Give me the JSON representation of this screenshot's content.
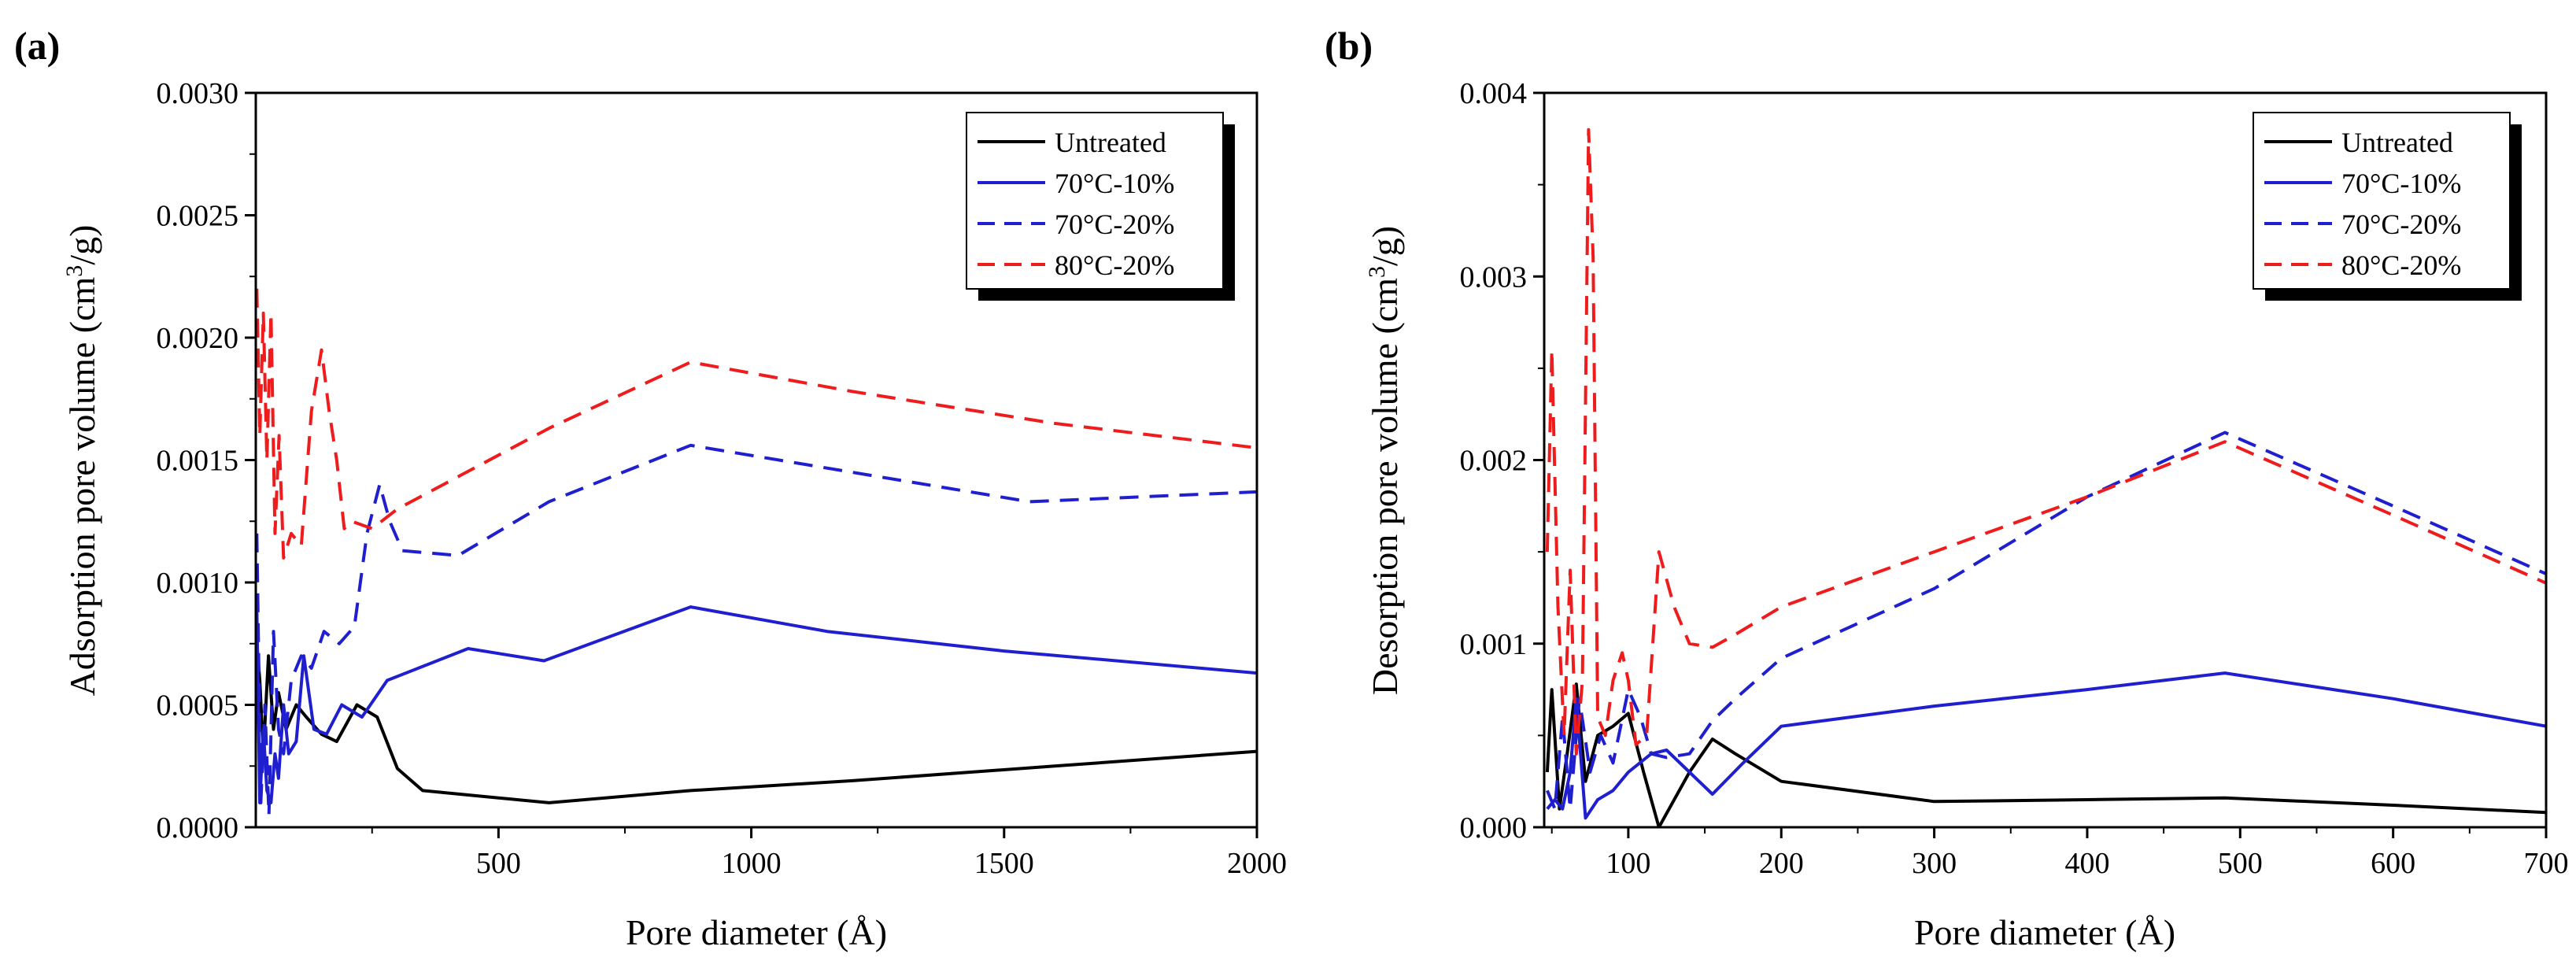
{
  "colors": {
    "untreated": "#000000",
    "blue": "#1f1fcf",
    "red": "#ee1c1c",
    "axis": "#000000",
    "background": "#ffffff"
  },
  "chart_data": [
    {
      "panel_label": "(a)",
      "type": "line",
      "xlabel": "Pore diameter (Å)",
      "ylabel": "Adsorption pore volume (cm³/g)",
      "ylabel_parts": {
        "pre": "Adsorption pore volume (cm",
        "sup": "3",
        "post": "/g)"
      },
      "xlim": [
        20,
        2000
      ],
      "ylim": [
        0,
        0.003
      ],
      "xticks": [
        500,
        1000,
        1500,
        2000
      ],
      "xtick_labels": [
        "500",
        "1000",
        "1500",
        "2000"
      ],
      "yticks": [
        0,
        0.0005,
        0.001,
        0.0015,
        0.002,
        0.0025,
        0.003
      ],
      "ytick_labels": [
        "0.0000",
        "0.0005",
        "0.0010",
        "0.0015",
        "0.0020",
        "0.0025",
        "0.0030"
      ],
      "legend": {
        "location": "top-right",
        "entries": [
          "Untreated",
          "70°C-10%",
          "70°C-20%",
          "80°C-20%"
        ]
      },
      "series": [
        {
          "name": "Untreated",
          "color": "#000000",
          "dash": "solid",
          "x": [
            22,
            28,
            35,
            45,
            55,
            65,
            80,
            100,
            120,
            150,
            180,
            220,
            260,
            300,
            350,
            450,
            600,
            880,
            1200,
            1600,
            2000
          ],
          "y": [
            0.00075,
            0.0006,
            0.0003,
            0.0007,
            0.0004,
            0.00055,
            0.0004,
            0.0005,
            0.00045,
            0.00038,
            0.00035,
            0.0005,
            0.00045,
            0.00024,
            0.00015,
            0.00013,
            0.0001,
            0.00015,
            0.00019,
            0.00025,
            0.00031
          ]
        },
        {
          "name": "70°C-10%",
          "color": "#1f1fcf",
          "dash": "solid",
          "x": [
            22,
            28,
            35,
            42,
            50,
            58,
            65,
            75,
            85,
            100,
            115,
            135,
            160,
            190,
            230,
            280,
            440,
            590,
            880,
            1150,
            1500,
            2000
          ],
          "y": [
            0.0009,
            0.0001,
            0.0004,
            0.00015,
            0.0001,
            0.0003,
            0.0002,
            0.0005,
            0.0003,
            0.00035,
            0.0007,
            0.0004,
            0.00038,
            0.0005,
            0.00045,
            0.0006,
            0.00073,
            0.00068,
            0.0009,
            0.0008,
            0.00072,
            0.00063
          ]
        },
        {
          "name": "70°C-20%",
          "color": "#1f1fcf",
          "dash": "dashed",
          "x": [
            22,
            30,
            38,
            46,
            55,
            65,
            75,
            90,
            110,
            130,
            155,
            185,
            215,
            240,
            265,
            285,
            310,
            420,
            600,
            880,
            1200,
            1550,
            2000
          ],
          "y": [
            0.0012,
            0.0001,
            0.0005,
            5e-05,
            0.0008,
            0.0004,
            0.0003,
            0.0006,
            0.0007,
            0.00065,
            0.0008,
            0.00075,
            0.00082,
            0.0012,
            0.0014,
            0.00125,
            0.00113,
            0.00111,
            0.00133,
            0.00156,
            0.00145,
            0.00133,
            0.00137
          ]
        },
        {
          "name": "80°C-20%",
          "color": "#ee1c1c",
          "dash": "dashed",
          "x": [
            22,
            28,
            35,
            42,
            50,
            58,
            66,
            75,
            90,
            110,
            130,
            150,
            165,
            180,
            195,
            210,
            250,
            300,
            600,
            880,
            1200,
            1600,
            2000
          ],
          "y": [
            0.0022,
            0.0016,
            0.0021,
            0.0015,
            0.0021,
            0.0012,
            0.0016,
            0.0011,
            0.0012,
            0.00115,
            0.0017,
            0.00195,
            0.0017,
            0.0015,
            0.00122,
            0.00125,
            0.00122,
            0.0013,
            0.00163,
            0.0019,
            0.00178,
            0.00165,
            0.00155
          ]
        }
      ]
    },
    {
      "panel_label": "(b)",
      "type": "line",
      "xlabel": "Pore diameter (Å)",
      "ylabel": "Desorption pore volume (cm³/g)",
      "ylabel_parts": {
        "pre": "Desorption pore volume (cm",
        "sup": "3",
        "post": "/g)"
      },
      "xlim": [
        45,
        700
      ],
      "ylim": [
        0,
        0.004
      ],
      "xticks": [
        100,
        200,
        300,
        400,
        500,
        600,
        700
      ],
      "xtick_labels": [
        "100",
        "200",
        "300",
        "400",
        "500",
        "600",
        "700"
      ],
      "yticks": [
        0,
        0.001,
        0.002,
        0.003,
        0.004
      ],
      "ytick_labels": [
        "0.000",
        "0.001",
        "0.002",
        "0.003",
        "0.004"
      ],
      "legend": {
        "location": "top-right",
        "entries": [
          "Untreated",
          "70°C-10%",
          "70°C-20%",
          "80°C-20%"
        ]
      },
      "series": [
        {
          "name": "Untreated",
          "color": "#000000",
          "dash": "solid",
          "x": [
            47,
            50,
            55,
            60,
            66,
            72,
            80,
            90,
            100,
            110,
            120,
            140,
            155,
            170,
            200,
            300,
            400,
            490,
            600,
            700
          ],
          "y": [
            0.0003,
            0.00075,
            0.0001,
            0.0004,
            0.00078,
            0.00025,
            0.0005,
            0.00055,
            0.00062,
            0.0003,
            0.0,
            0.0003,
            0.00048,
            0.0004,
            0.00025,
            0.00014,
            0.00015,
            0.00016,
            0.00012,
            8e-05
          ]
        },
        {
          "name": "70°C-10%",
          "color": "#1f1fcf",
          "dash": "solid",
          "x": [
            47,
            52,
            57,
            62,
            66,
            72,
            80,
            90,
            100,
            115,
            125,
            140,
            155,
            175,
            200,
            300,
            400,
            490,
            600,
            700
          ],
          "y": [
            0.0001,
            0.00015,
            0.0001,
            0.0003,
            0.0007,
            5e-05,
            0.00015,
            0.0002,
            0.0003,
            0.0004,
            0.00042,
            0.0003,
            0.00018,
            0.00035,
            0.00055,
            0.00066,
            0.00075,
            0.00084,
            0.0007,
            0.00055
          ]
        },
        {
          "name": "70°C-20%",
          "color": "#1f1fcf",
          "dash": "dashed",
          "x": [
            47,
            52,
            57,
            62,
            68,
            75,
            82,
            90,
            100,
            108,
            115,
            125,
            140,
            155,
            170,
            200,
            300,
            400,
            490,
            600,
            700
          ],
          "y": [
            0.0002,
            0.0001,
            0.0006,
            0.0001,
            0.0007,
            0.0003,
            0.0005,
            0.00035,
            0.00075,
            0.0006,
            0.0004,
            0.00038,
            0.0004,
            0.00058,
            0.0007,
            0.00092,
            0.0013,
            0.0018,
            0.00215,
            0.00175,
            0.00138
          ]
        },
        {
          "name": "80°C-20%",
          "color": "#ee1c1c",
          "dash": "dashed",
          "x": [
            47,
            50,
            54,
            58,
            62,
            66,
            70,
            74,
            77,
            80,
            85,
            90,
            96,
            100,
            105,
            112,
            120,
            130,
            140,
            155,
            170,
            200,
            300,
            400,
            490,
            600,
            700
          ],
          "y": [
            0.0015,
            0.0026,
            0.0012,
            0.0005,
            0.0014,
            0.0004,
            0.0008,
            0.0038,
            0.0031,
            0.0006,
            0.0005,
            0.0008,
            0.00095,
            0.0008,
            0.00045,
            0.0005,
            0.0015,
            0.0012,
            0.001,
            0.00098,
            0.00105,
            0.0012,
            0.0015,
            0.0018,
            0.0021,
            0.0017,
            0.00133
          ]
        }
      ]
    }
  ]
}
